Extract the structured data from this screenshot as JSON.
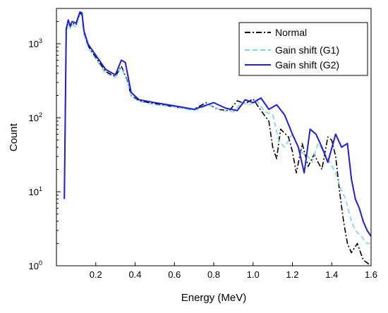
{
  "chart_data": {
    "type": "line",
    "title": "",
    "xlabel": "Energy (MeV)",
    "ylabel": "Count",
    "xlim": [
      0.0,
      1.6
    ],
    "ylim": [
      1,
      3000
    ],
    "yscale": "log",
    "grid": false,
    "legend_position": "top-right",
    "x_ticks": [
      {
        "value": 0.2,
        "label": "0.2"
      },
      {
        "value": 0.4,
        "label": "0.4"
      },
      {
        "value": 0.6,
        "label": "0.6"
      },
      {
        "value": 0.8,
        "label": "0.8"
      },
      {
        "value": 1.0,
        "label": "1.0"
      },
      {
        "value": 1.2,
        "label": "1.2"
      },
      {
        "value": 1.4,
        "label": "1.4"
      },
      {
        "value": 1.6,
        "label": "1.6"
      }
    ],
    "y_ticks": [
      {
        "value": 1,
        "base": "10",
        "exp": "0"
      },
      {
        "value": 10,
        "base": "10",
        "exp": "1"
      },
      {
        "value": 100,
        "base": "10",
        "exp": "2"
      },
      {
        "value": 1000,
        "base": "10",
        "exp": "3"
      }
    ],
    "series": [
      {
        "name": "Normal",
        "color": "#000000",
        "style": "dashdot",
        "x": [
          0.04,
          0.05,
          0.06,
          0.07,
          0.08,
          0.1,
          0.12,
          0.13,
          0.14,
          0.16,
          0.2,
          0.25,
          0.3,
          0.33,
          0.36,
          0.38,
          0.42,
          0.5,
          0.6,
          0.7,
          0.76,
          0.82,
          0.88,
          0.92,
          0.96,
          1.0,
          1.04,
          1.08,
          1.1,
          1.12,
          1.14,
          1.18,
          1.2,
          1.22,
          1.25,
          1.28,
          1.31,
          1.35,
          1.38,
          1.4,
          1.42,
          1.44,
          1.46,
          1.48,
          1.5,
          1.53,
          1.56,
          1.6
        ],
        "y": [
          8,
          1500,
          2000,
          1700,
          1900,
          1800,
          2600,
          2500,
          1400,
          950,
          650,
          420,
          360,
          500,
          320,
          200,
          170,
          155,
          140,
          130,
          160,
          130,
          125,
          170,
          155,
          180,
          125,
          90,
          40,
          28,
          70,
          55,
          35,
          18,
          45,
          22,
          32,
          20,
          55,
          50,
          30,
          10,
          4,
          2,
          1.5,
          2,
          1.2,
          1
        ]
      },
      {
        "name": "Gain shift (G1)",
        "color": "#7fd3e6",
        "style": "dashed",
        "x": [
          0.04,
          0.05,
          0.06,
          0.07,
          0.08,
          0.1,
          0.12,
          0.13,
          0.14,
          0.16,
          0.2,
          0.25,
          0.3,
          0.33,
          0.36,
          0.38,
          0.42,
          0.5,
          0.6,
          0.7,
          0.78,
          0.84,
          0.9,
          0.94,
          0.98,
          1.02,
          1.06,
          1.1,
          1.13,
          1.16,
          1.2,
          1.24,
          1.28,
          1.3,
          1.33,
          1.36,
          1.39,
          1.42,
          1.44,
          1.47,
          1.5,
          1.52,
          1.55,
          1.58,
          1.6
        ],
        "y": [
          8,
          1400,
          1900,
          1600,
          1800,
          1700,
          2500,
          2400,
          1350,
          900,
          620,
          400,
          350,
          480,
          310,
          195,
          165,
          150,
          140,
          125,
          150,
          125,
          120,
          160,
          150,
          170,
          120,
          110,
          50,
          40,
          60,
          35,
          30,
          25,
          45,
          35,
          25,
          18,
          12,
          8,
          4,
          3,
          2.5,
          2,
          2
        ]
      },
      {
        "name": "Gain shift (G2)",
        "color": "#1f1fd4",
        "style": "solid",
        "x": [
          0.04,
          0.05,
          0.06,
          0.07,
          0.08,
          0.1,
          0.12,
          0.13,
          0.14,
          0.16,
          0.2,
          0.25,
          0.3,
          0.33,
          0.35,
          0.38,
          0.42,
          0.5,
          0.6,
          0.7,
          0.8,
          0.86,
          0.92,
          0.96,
          1.0,
          1.04,
          1.08,
          1.12,
          1.16,
          1.2,
          1.23,
          1.26,
          1.29,
          1.32,
          1.35,
          1.38,
          1.42,
          1.45,
          1.48,
          1.5,
          1.52,
          1.54,
          1.56,
          1.58,
          1.6
        ],
        "y": [
          8,
          1600,
          2100,
          1750,
          2000,
          1900,
          2700,
          2600,
          1500,
          1000,
          700,
          450,
          380,
          600,
          560,
          220,
          175,
          160,
          145,
          130,
          160,
          135,
          125,
          175,
          160,
          185,
          130,
          150,
          110,
          60,
          40,
          18,
          70,
          60,
          40,
          25,
          60,
          40,
          45,
          15,
          8,
          6,
          4,
          3,
          2.5
        ]
      }
    ]
  }
}
